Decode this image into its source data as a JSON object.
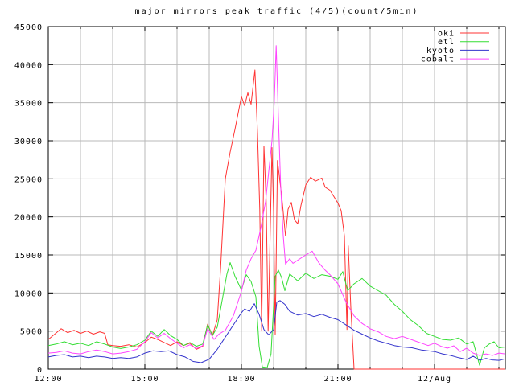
{
  "title": "major mirrors peak traffic (4/5)(count/5min)",
  "chart_data": {
    "type": "line",
    "title": "major mirrors peak traffic (4/5)(count/5min)",
    "xlabel": "",
    "ylabel": "",
    "grid": true,
    "legend_position": "top-right",
    "x_axis": {
      "unit": "hours-after-12:00",
      "range_hours": [
        0,
        14.2
      ],
      "minor_tick_every_hours": 1,
      "major_ticks": [
        {
          "hours": 0,
          "label": "12:00"
        },
        {
          "hours": 3,
          "label": "15:00"
        },
        {
          "hours": 6,
          "label": "18:00"
        },
        {
          "hours": 9,
          "label": "21:00"
        },
        {
          "hours": 12,
          "label": "12/Aug"
        }
      ]
    },
    "y_axis": {
      "range": [
        0,
        45000
      ],
      "grid_step": 5000,
      "tick_labels": [
        "0",
        "5000",
        "10000",
        "15000",
        "20000",
        "25000",
        "30000",
        "35000",
        "40000",
        "45000"
      ]
    },
    "grid_color": "#b9b9b9",
    "border_color": "#000000",
    "series": [
      {
        "name": "oki",
        "color": "#ff3333",
        "points": [
          [
            0,
            3900
          ],
          [
            0.2,
            4600
          ],
          [
            0.4,
            5300
          ],
          [
            0.6,
            4800
          ],
          [
            0.8,
            5100
          ],
          [
            1,
            4700
          ],
          [
            1.2,
            5000
          ],
          [
            1.4,
            4600
          ],
          [
            1.6,
            4900
          ],
          [
            1.75,
            4700
          ],
          [
            1.85,
            3200
          ],
          [
            2,
            3100
          ],
          [
            2.25,
            3000
          ],
          [
            2.5,
            3200
          ],
          [
            2.75,
            2900
          ],
          [
            3,
            3500
          ],
          [
            3.2,
            4200
          ],
          [
            3.4,
            3900
          ],
          [
            3.6,
            3500
          ],
          [
            3.8,
            3100
          ],
          [
            4,
            3600
          ],
          [
            4.2,
            3100
          ],
          [
            4.4,
            3400
          ],
          [
            4.6,
            2600
          ],
          [
            4.8,
            3000
          ],
          [
            4.95,
            5900
          ],
          [
            5.1,
            4400
          ],
          [
            5.25,
            6500
          ],
          [
            5.35,
            13000
          ],
          [
            5.5,
            25000
          ],
          [
            5.65,
            28500
          ],
          [
            5.8,
            31500
          ],
          [
            6,
            35800
          ],
          [
            6.1,
            34600
          ],
          [
            6.2,
            36300
          ],
          [
            6.3,
            34800
          ],
          [
            6.42,
            39300
          ],
          [
            6.5,
            31000
          ],
          [
            6.57,
            21000
          ],
          [
            6.63,
            5000
          ],
          [
            6.7,
            29300
          ],
          [
            6.77,
            22000
          ],
          [
            6.83,
            5000
          ],
          [
            6.95,
            29100
          ],
          [
            7,
            20700
          ],
          [
            7.05,
            4500
          ],
          [
            7.12,
            27400
          ],
          [
            7.25,
            22800
          ],
          [
            7.37,
            17500
          ],
          [
            7.45,
            21000
          ],
          [
            7.55,
            21900
          ],
          [
            7.65,
            19600
          ],
          [
            7.75,
            19100
          ],
          [
            7.85,
            21500
          ],
          [
            8,
            24200
          ],
          [
            8.15,
            25200
          ],
          [
            8.3,
            24700
          ],
          [
            8.5,
            25100
          ],
          [
            8.6,
            23900
          ],
          [
            8.75,
            23500
          ],
          [
            9,
            21800
          ],
          [
            9.1,
            20800
          ],
          [
            9.2,
            17500
          ],
          [
            9.28,
            5200
          ],
          [
            9.32,
            16200
          ],
          [
            9.4,
            8000
          ],
          [
            9.5,
            0
          ],
          [
            14.2,
            0
          ]
        ]
      },
      {
        "name": "etl",
        "color": "#33dd33",
        "points": [
          [
            0,
            3100
          ],
          [
            0.25,
            3300
          ],
          [
            0.5,
            3600
          ],
          [
            0.75,
            3200
          ],
          [
            1,
            3400
          ],
          [
            1.25,
            3100
          ],
          [
            1.5,
            3600
          ],
          [
            1.75,
            3300
          ],
          [
            2,
            2900
          ],
          [
            2.25,
            2700
          ],
          [
            2.5,
            2900
          ],
          [
            2.75,
            3200
          ],
          [
            3,
            3800
          ],
          [
            3.2,
            5000
          ],
          [
            3.4,
            4300
          ],
          [
            3.6,
            5200
          ],
          [
            3.8,
            4400
          ],
          [
            4,
            3900
          ],
          [
            4.2,
            3100
          ],
          [
            4.4,
            3500
          ],
          [
            4.6,
            3000
          ],
          [
            4.8,
            3300
          ],
          [
            4.95,
            5800
          ],
          [
            5.1,
            4400
          ],
          [
            5.25,
            5500
          ],
          [
            5.4,
            9000
          ],
          [
            5.55,
            12500
          ],
          [
            5.65,
            14000
          ],
          [
            5.8,
            12200
          ],
          [
            6,
            10400
          ],
          [
            6.15,
            12400
          ],
          [
            6.3,
            11500
          ],
          [
            6.45,
            9500
          ],
          [
            6.55,
            3000
          ],
          [
            6.65,
            300
          ],
          [
            6.8,
            200
          ],
          [
            6.92,
            2000
          ],
          [
            7.05,
            12200
          ],
          [
            7.15,
            13000
          ],
          [
            7.25,
            12000
          ],
          [
            7.35,
            10300
          ],
          [
            7.5,
            12500
          ],
          [
            7.75,
            11600
          ],
          [
            8,
            12600
          ],
          [
            8.25,
            11900
          ],
          [
            8.5,
            12400
          ],
          [
            8.75,
            12200
          ],
          [
            9,
            11800
          ],
          [
            9.15,
            12800
          ],
          [
            9.3,
            10300
          ],
          [
            9.5,
            11200
          ],
          [
            9.75,
            11900
          ],
          [
            10,
            10900
          ],
          [
            10.25,
            10300
          ],
          [
            10.5,
            9700
          ],
          [
            10.75,
            8500
          ],
          [
            11,
            7600
          ],
          [
            11.25,
            6500
          ],
          [
            11.5,
            5700
          ],
          [
            11.75,
            4700
          ],
          [
            12,
            4300
          ],
          [
            12.25,
            3900
          ],
          [
            12.5,
            3800
          ],
          [
            12.75,
            4100
          ],
          [
            13,
            3300
          ],
          [
            13.2,
            3600
          ],
          [
            13.4,
            500
          ],
          [
            13.55,
            2800
          ],
          [
            13.7,
            3300
          ],
          [
            13.85,
            3600
          ],
          [
            14,
            2800
          ],
          [
            14.2,
            2900
          ]
        ]
      },
      {
        "name": "kyoto",
        "color": "#3333cc",
        "points": [
          [
            0,
            1600
          ],
          [
            0.25,
            1800
          ],
          [
            0.5,
            1900
          ],
          [
            0.75,
            1600
          ],
          [
            1,
            1700
          ],
          [
            1.25,
            1500
          ],
          [
            1.5,
            1700
          ],
          [
            1.75,
            1600
          ],
          [
            2,
            1400
          ],
          [
            2.25,
            1500
          ],
          [
            2.5,
            1400
          ],
          [
            2.75,
            1600
          ],
          [
            3,
            2100
          ],
          [
            3.25,
            2400
          ],
          [
            3.5,
            2300
          ],
          [
            3.75,
            2400
          ],
          [
            4,
            1900
          ],
          [
            4.25,
            1600
          ],
          [
            4.5,
            1000
          ],
          [
            4.75,
            850
          ],
          [
            5,
            1300
          ],
          [
            5.25,
            2600
          ],
          [
            5.5,
            4200
          ],
          [
            5.75,
            5800
          ],
          [
            6,
            7400
          ],
          [
            6.1,
            7900
          ],
          [
            6.25,
            7600
          ],
          [
            6.4,
            8600
          ],
          [
            6.55,
            7200
          ],
          [
            6.7,
            5200
          ],
          [
            6.85,
            4500
          ],
          [
            7,
            5200
          ],
          [
            7.1,
            8800
          ],
          [
            7.2,
            9000
          ],
          [
            7.35,
            8500
          ],
          [
            7.5,
            7600
          ],
          [
            7.75,
            7100
          ],
          [
            8,
            7300
          ],
          [
            8.25,
            6900
          ],
          [
            8.5,
            7200
          ],
          [
            8.75,
            6800
          ],
          [
            9,
            6500
          ],
          [
            9.25,
            5800
          ],
          [
            9.5,
            5100
          ],
          [
            9.75,
            4600
          ],
          [
            10,
            4100
          ],
          [
            10.25,
            3700
          ],
          [
            10.5,
            3400
          ],
          [
            10.75,
            3100
          ],
          [
            11,
            2900
          ],
          [
            11.3,
            2800
          ],
          [
            11.6,
            2500
          ],
          [
            12,
            2300
          ],
          [
            12.25,
            2000
          ],
          [
            12.5,
            1800
          ],
          [
            12.75,
            1500
          ],
          [
            13,
            1270
          ],
          [
            13.2,
            1700
          ],
          [
            13.4,
            1160
          ],
          [
            13.6,
            1400
          ],
          [
            13.8,
            1200
          ],
          [
            14,
            1150
          ],
          [
            14.2,
            1350
          ]
        ]
      },
      {
        "name": "cobalt",
        "color": "#ff44ff",
        "points": [
          [
            0,
            2100
          ],
          [
            0.25,
            2200
          ],
          [
            0.5,
            2400
          ],
          [
            0.75,
            2100
          ],
          [
            1,
            2000
          ],
          [
            1.25,
            2300
          ],
          [
            1.5,
            2500
          ],
          [
            1.75,
            2300
          ],
          [
            2,
            2000
          ],
          [
            2.25,
            2100
          ],
          [
            2.5,
            2300
          ],
          [
            2.75,
            2600
          ],
          [
            3,
            3600
          ],
          [
            3.2,
            4800
          ],
          [
            3.4,
            4100
          ],
          [
            3.6,
            4700
          ],
          [
            3.8,
            4000
          ],
          [
            4,
            3400
          ],
          [
            4.2,
            2800
          ],
          [
            4.4,
            3200
          ],
          [
            4.6,
            2700
          ],
          [
            4.8,
            3100
          ],
          [
            4.95,
            5300
          ],
          [
            5.15,
            3900
          ],
          [
            5.3,
            4600
          ],
          [
            5.5,
            5100
          ],
          [
            5.75,
            7000
          ],
          [
            6,
            10200
          ],
          [
            6.15,
            13000
          ],
          [
            6.3,
            14500
          ],
          [
            6.45,
            15600
          ],
          [
            6.6,
            18500
          ],
          [
            6.75,
            22000
          ],
          [
            6.85,
            26000
          ],
          [
            6.95,
            30000
          ],
          [
            7.02,
            35000
          ],
          [
            7.08,
            42500
          ],
          [
            7.15,
            33000
          ],
          [
            7.22,
            24000
          ],
          [
            7.3,
            17500
          ],
          [
            7.37,
            13800
          ],
          [
            7.5,
            14500
          ],
          [
            7.6,
            13900
          ],
          [
            7.75,
            14300
          ],
          [
            8,
            15000
          ],
          [
            8.2,
            15500
          ],
          [
            8.4,
            14000
          ],
          [
            8.6,
            13000
          ],
          [
            8.75,
            12400
          ],
          [
            9,
            11200
          ],
          [
            9.25,
            8800
          ],
          [
            9.5,
            7000
          ],
          [
            9.75,
            6000
          ],
          [
            10,
            5300
          ],
          [
            10.25,
            4900
          ],
          [
            10.5,
            4300
          ],
          [
            10.75,
            4000
          ],
          [
            11,
            4300
          ],
          [
            11.2,
            4000
          ],
          [
            11.4,
            3700
          ],
          [
            11.6,
            3400
          ],
          [
            11.8,
            3100
          ],
          [
            12,
            3400
          ],
          [
            12.2,
            3000
          ],
          [
            12.4,
            2750
          ],
          [
            12.6,
            3060
          ],
          [
            12.8,
            2300
          ],
          [
            13,
            2750
          ],
          [
            13.2,
            2100
          ],
          [
            13.4,
            1800
          ],
          [
            13.6,
            2000
          ],
          [
            13.8,
            1800
          ],
          [
            14,
            2100
          ],
          [
            14.2,
            2000
          ]
        ]
      }
    ]
  }
}
